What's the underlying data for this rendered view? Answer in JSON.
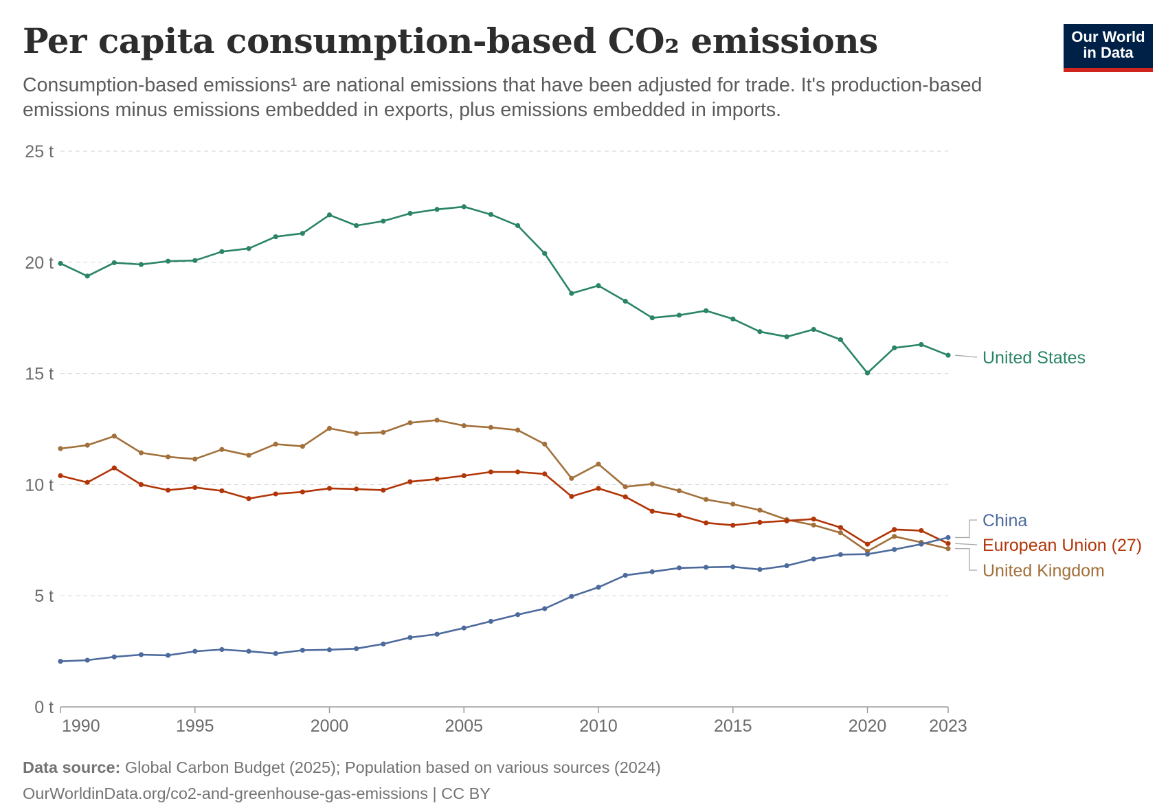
{
  "header": {
    "title": "Per capita consumption-based CO₂ emissions",
    "subtitle": "Consumption-based emissions¹ are national emissions that have been adjusted for trade. It's production-based emissions minus emissions embedded in exports, plus emissions embedded in imports."
  },
  "logo": {
    "line1": "Our World",
    "line2": "in Data",
    "bg_color": "#002147",
    "accent_color": "#ce261e"
  },
  "footer": {
    "source_label": "Data source:",
    "source_text": "Global Carbon Budget (2025); Population based on various sources (2024)",
    "url_text": "OurWorldinData.org/co2-and-greenhouse-gas-emissions | CC BY"
  },
  "chart_data": {
    "type": "line",
    "title": "Per capita consumption-based CO₂ emissions",
    "x": [
      1990,
      1991,
      1992,
      1993,
      1994,
      1995,
      1996,
      1997,
      1998,
      1999,
      2000,
      2001,
      2002,
      2003,
      2004,
      2005,
      2006,
      2007,
      2008,
      2009,
      2010,
      2011,
      2012,
      2013,
      2014,
      2015,
      2016,
      2017,
      2018,
      2019,
      2020,
      2021,
      2022,
      2023
    ],
    "xticks": [
      1990,
      1995,
      2000,
      2005,
      2010,
      2015,
      2020,
      2023
    ],
    "xlim": [
      1990,
      2023
    ],
    "yticks": [
      0,
      5,
      10,
      15,
      20,
      25
    ],
    "ytick_labels": [
      "0 t",
      "5 t",
      "10 t",
      "15 t",
      "20 t",
      "25 t"
    ],
    "ylim": [
      0,
      25
    ],
    "grid": true,
    "series": [
      {
        "name": "United States",
        "color": "#2a8466",
        "values": [
          19.95,
          19.38,
          19.98,
          19.9,
          20.05,
          20.08,
          20.48,
          20.62,
          21.15,
          21.3,
          22.13,
          21.65,
          21.85,
          22.2,
          22.38,
          22.5,
          22.15,
          21.65,
          20.4,
          18.6,
          18.95,
          18.25,
          17.5,
          17.62,
          17.82,
          17.45,
          16.88,
          16.65,
          16.98,
          16.52,
          15.02,
          16.15,
          16.3,
          15.82
        ]
      },
      {
        "name": "United Kingdom",
        "color": "#a2703a",
        "values": [
          11.62,
          11.77,
          12.18,
          11.43,
          11.25,
          11.15,
          11.58,
          11.32,
          11.82,
          11.72,
          12.53,
          12.3,
          12.35,
          12.78,
          12.9,
          12.65,
          12.57,
          12.45,
          11.82,
          10.28,
          10.92,
          9.9,
          10.03,
          9.72,
          9.33,
          9.12,
          8.85,
          8.42,
          8.18,
          7.83,
          7.0,
          7.67,
          7.4,
          7.12
        ]
      },
      {
        "name": "European Union (27)",
        "color": "#b13507",
        "values": [
          10.4,
          10.1,
          10.75,
          10.0,
          9.75,
          9.87,
          9.72,
          9.37,
          9.58,
          9.67,
          9.83,
          9.8,
          9.75,
          10.13,
          10.25,
          10.4,
          10.57,
          10.57,
          10.48,
          9.47,
          9.83,
          9.45,
          8.8,
          8.62,
          8.28,
          8.17,
          8.3,
          8.37,
          8.45,
          8.07,
          7.32,
          7.98,
          7.93,
          7.35
        ]
      },
      {
        "name": "China",
        "color": "#4c6a9c",
        "values": [
          2.05,
          2.1,
          2.25,
          2.35,
          2.32,
          2.5,
          2.58,
          2.5,
          2.4,
          2.55,
          2.57,
          2.62,
          2.83,
          3.12,
          3.27,
          3.55,
          3.85,
          4.15,
          4.42,
          4.97,
          5.38,
          5.92,
          6.08,
          6.25,
          6.28,
          6.3,
          6.18,
          6.35,
          6.65,
          6.85,
          6.87,
          7.08,
          7.32,
          7.62
        ]
      }
    ],
    "legend_placement": "right, line end labels"
  }
}
